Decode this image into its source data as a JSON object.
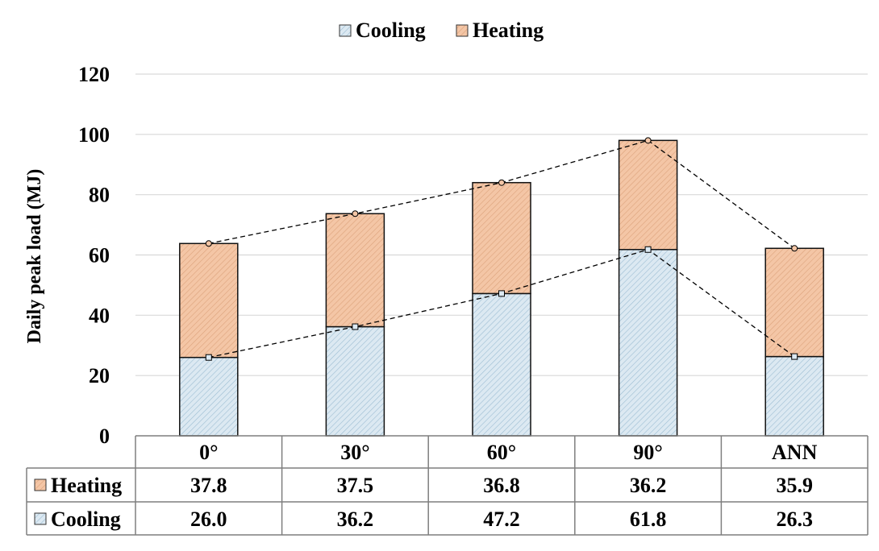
{
  "chart_data": {
    "type": "bar",
    "stacked": true,
    "categories": [
      "0°",
      "30°",
      "60°",
      "90°",
      "ANN"
    ],
    "series": [
      {
        "name": "Cooling",
        "values": [
          26.0,
          36.2,
          47.2,
          61.8,
          26.3
        ],
        "color": "#dce9f2",
        "hatch": "#8fb3cc"
      },
      {
        "name": "Heating",
        "values": [
          37.8,
          37.5,
          36.8,
          36.2,
          35.9
        ],
        "color": "#f4c6a6",
        "hatch": "#d79a73"
      }
    ],
    "ylabel": "Daily peak load (MJ)",
    "ylim": [
      0,
      120
    ],
    "yticks": [
      0,
      20,
      40,
      60,
      80,
      100,
      120
    ],
    "grid": true,
    "legend": "top-center",
    "trend_lines": "dashed",
    "data_table": {
      "rows": [
        {
          "label": "Heating",
          "values": [
            "37.8",
            "37.5",
            "36.8",
            "36.2",
            "35.9"
          ]
        },
        {
          "label": "Cooling",
          "values": [
            "26.0",
            "36.2",
            "47.2",
            "61.8",
            "26.3"
          ]
        }
      ]
    }
  }
}
